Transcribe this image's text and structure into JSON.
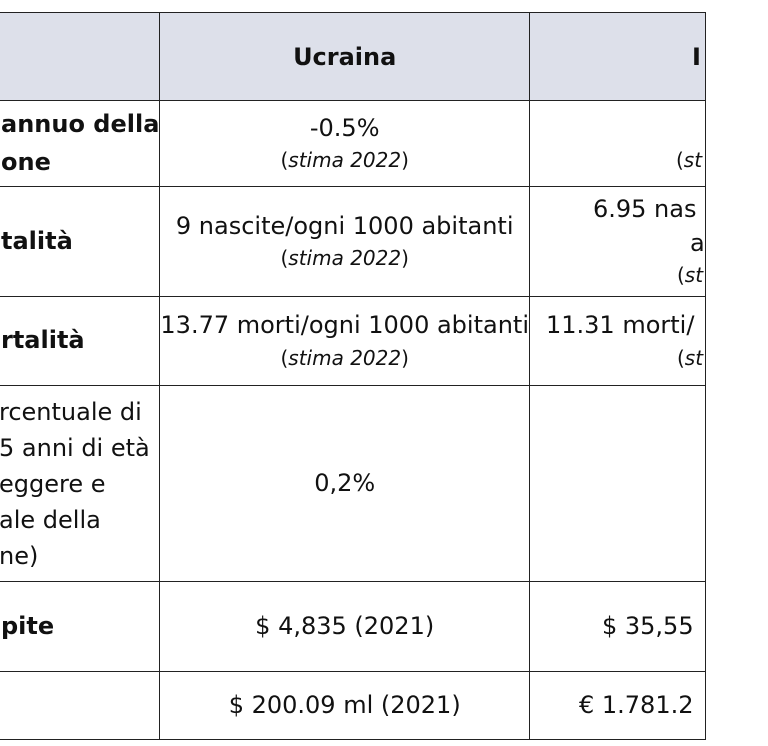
{
  "table": {
    "columns": [
      "",
      "Ucraina",
      "I"
    ],
    "rows": [
      {
        "label_lines": [
          "annuo della",
          "one"
        ],
        "ucraina": {
          "value": "-0.5%",
          "note_open": "(",
          "note_italic": "stima 2022",
          "note_close": ")"
        },
        "other": {
          "value": "",
          "note_open": "(",
          "note_italic": "st",
          "note_close": ""
        }
      },
      {
        "label_lines": [
          "talità"
        ],
        "ucraina": {
          "value": "9 nascite/ogni 1000 abitanti",
          "note_open": "(",
          "note_italic": "stima 2022",
          "note_close": ")"
        },
        "other": {
          "value_lines": [
            "6.95 nas",
            "a"
          ],
          "note_open": "(",
          "note_italic": "st",
          "note_close": ""
        }
      },
      {
        "label_lines": [
          "rtalità"
        ],
        "ucraina": {
          "value": "13.77 morti/ogni 1000 abitanti",
          "note_open": "(",
          "note_italic": "stima 2022",
          "note_close": ")"
        },
        "other": {
          "value": "11.31 morti/",
          "note_open": "(",
          "note_italic": "st",
          "note_close": ""
        }
      },
      {
        "label_lines": [
          "rcentuale di",
          "5 anni di età",
          "eggere e",
          "ale della",
          "ne)"
        ],
        "ucraina": {
          "value": "0,2%"
        },
        "other": {
          "value": ""
        }
      },
      {
        "label_lines": [
          "pite"
        ],
        "ucraina": {
          "value": "$ 4,835 (2021)"
        },
        "other": {
          "value": "$ 35,55"
        }
      },
      {
        "label_lines": [
          ""
        ],
        "ucraina": {
          "value": "$ 200.09 ml (2021)"
        },
        "other": {
          "value": "€  1.781.2"
        }
      }
    ]
  }
}
